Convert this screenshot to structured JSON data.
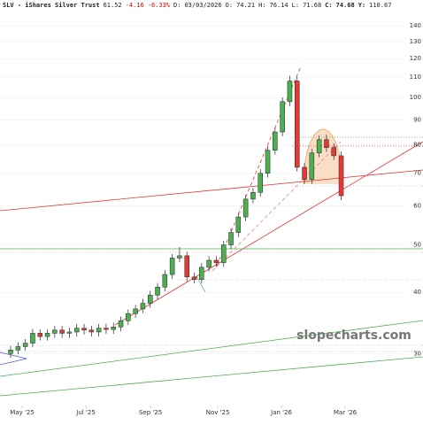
{
  "chart_data": {
    "type": "candlestick",
    "quote": {
      "symbol": "SLV - iShares Silver Trust",
      "last": "61.52",
      "change": "-4.16",
      "change_pct": "-6.33%",
      "date_label": "D:",
      "date": "03/03/2026",
      "open_label": "O:",
      "open": "74.21",
      "high_label": "H:",
      "high": "76.14",
      "low_label": "L:",
      "low": "71.68",
      "close_label": "C:",
      "close": "74.68",
      "year_high_label": "Y:",
      "year_high": "110.67"
    },
    "watermark": "slopecharts.com",
    "categories": [
      null,
      null,
      null,
      null,
      null,
      null,
      null,
      null,
      null,
      null,
      null,
      null,
      null,
      null,
      null,
      null,
      null,
      null,
      null,
      null,
      null,
      null,
      null,
      null,
      null,
      null,
      null,
      null,
      null,
      null,
      null,
      null,
      null,
      null,
      null,
      null,
      null,
      null,
      null,
      null,
      null,
      null,
      null,
      null,
      null,
      null
    ],
    "open": [
      30,
      30.5,
      31,
      31.5,
      33,
      32.5,
      33,
      33.5,
      33,
      33.2,
      33.8,
      33.5,
      33.2,
      33.8,
      33.6,
      34,
      35,
      36.2,
      37,
      38,
      39.5,
      41,
      43.5,
      47,
      47.5,
      43,
      42.5,
      45,
      46.5,
      46,
      50,
      53,
      57,
      62,
      64,
      70,
      78,
      85,
      98,
      108,
      72,
      68,
      77,
      82,
      79,
      76
    ],
    "high": [
      31.1,
      31.6,
      32.1,
      33.7,
      33.6,
      33.6,
      34.2,
      34.2,
      33.9,
      34.5,
      34.5,
      34.2,
      34.5,
      34.5,
      34.7,
      35.7,
      36.9,
      37.7,
      38.8,
      40.3,
      41.8,
      44.4,
      47.9,
      49.5,
      48.4,
      43.9,
      45.9,
      47.4,
      47.4,
      51,
      54.1,
      58.1,
      63.2,
      65.3,
      71.4,
      79.6,
      86.7,
      100,
      110.7,
      110.2,
      73.4,
      78.5,
      83.6,
      84,
      80.6,
      77.5
    ],
    "low": [
      29.4,
      29.9,
      30.4,
      30.9,
      31.9,
      31.9,
      32.3,
      32.3,
      32.3,
      32.5,
      32.8,
      32.5,
      32.5,
      32.9,
      32.9,
      33.3,
      34.3,
      35.5,
      36.3,
      37.2,
      38.7,
      40.2,
      42.6,
      46.1,
      42.1,
      41.7,
      41.7,
      44.1,
      45.1,
      45.1,
      49,
      51.9,
      55.9,
      60.8,
      62.7,
      68.6,
      76.4,
      83.3,
      96,
      70.6,
      66.6,
      66.6,
      75.5,
      77.4,
      74.5,
      61.7
    ],
    "close": [
      30.5,
      31,
      31.5,
      33,
      32.5,
      33,
      33.5,
      33,
      33.2,
      33.8,
      33.5,
      33.2,
      33.8,
      33.6,
      34,
      35,
      36.2,
      37,
      38,
      39.5,
      41,
      43.5,
      47,
      47.5,
      43,
      42.5,
      45,
      46.5,
      46,
      50,
      53,
      57,
      62,
      64,
      70,
      78,
      85,
      98,
      108,
      72,
      68,
      77,
      82,
      79,
      76,
      63
    ],
    "up_color": "#4caf50",
    "down_color": "#e53935",
    "xlim": [
      -1.45,
      56.14
    ],
    "xticks": [
      {
        "value": 1.57,
        "label": "May '25"
      },
      {
        "value": 10.24,
        "label": "Jul '25"
      },
      {
        "value": 19.04,
        "label": "Sep '25"
      },
      {
        "value": 28.2,
        "label": "Nov '25"
      },
      {
        "value": 36.87,
        "label": "Jan '26"
      },
      {
        "value": 45.54,
        "label": "Mar '26"
      }
    ],
    "ylim": [
      23.5,
      151.6
    ],
    "log_y": true,
    "yticks": [
      30,
      40,
      50,
      60,
      70,
      80,
      90,
      100,
      110,
      120,
      130,
      140
    ]
  }
}
